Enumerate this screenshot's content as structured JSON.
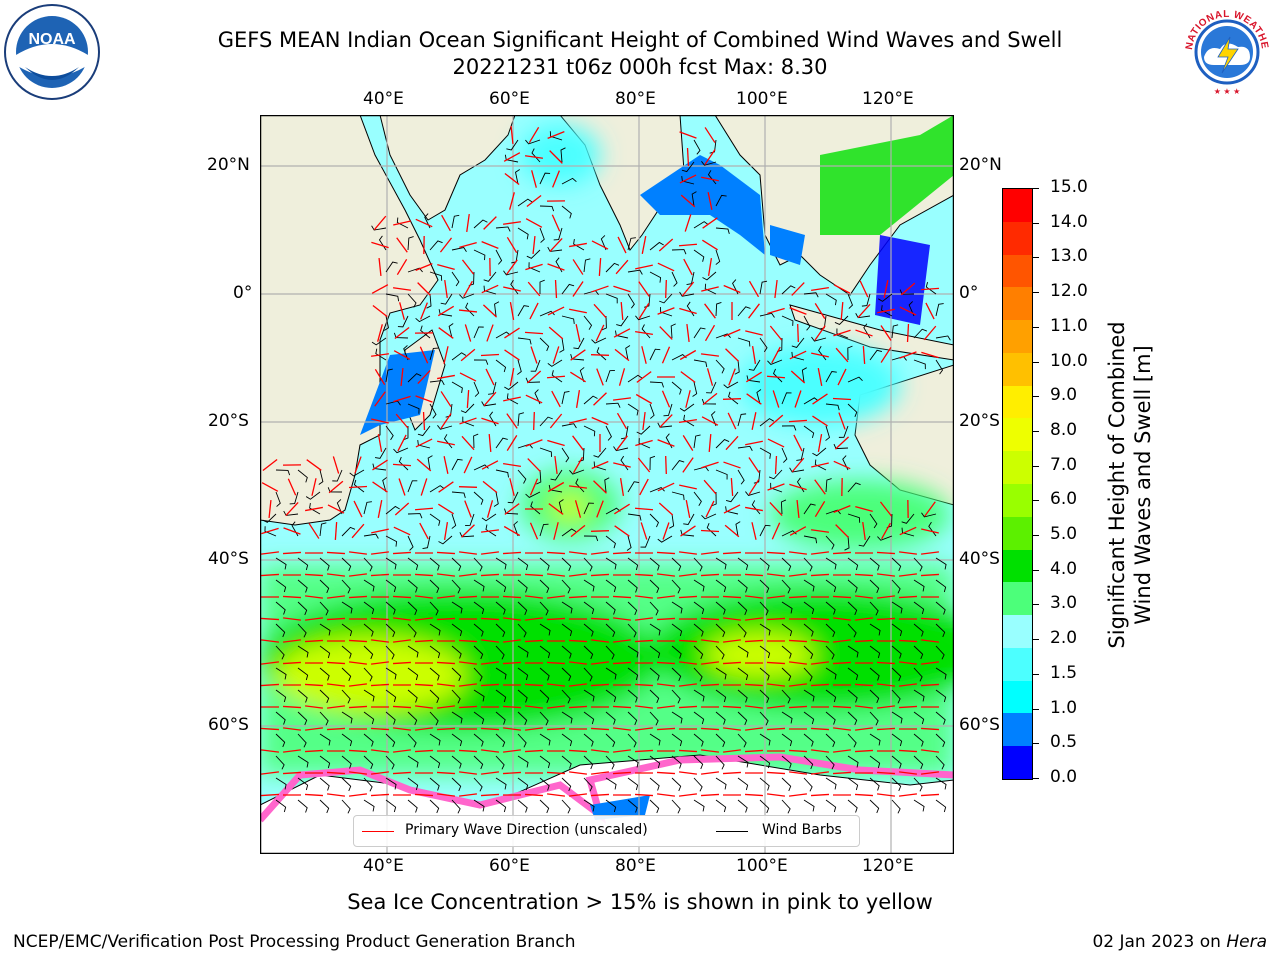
{
  "header": {
    "title_line1": "GEFS MEAN Indian Ocean Significant Height of Combined Wind Waves and Swell",
    "title_line2": "20221231 t06z 000h fcst   Max: 8.30"
  },
  "logos": {
    "left": {
      "name": "noaa-logo",
      "text": "NOAA"
    },
    "right": {
      "name": "nws-logo",
      "text": "NATIONAL WEATHER SERVICE"
    }
  },
  "map": {
    "lon_labels_top": [
      "40°E",
      "60°E",
      "80°E",
      "100°E",
      "120°E"
    ],
    "lon_labels_bottom": [
      "40°E",
      "60°E",
      "80°E",
      "100°E",
      "120°E"
    ],
    "lat_labels_left": [
      "20°N",
      "0°",
      "20°S",
      "40°S",
      "60°S"
    ],
    "lat_labels_right": [
      "20°N",
      "0°",
      "20°S",
      "40°S",
      "60°S"
    ],
    "land_color": "#efefdc",
    "grid_color": "#b0b0b0"
  },
  "legend": {
    "wave_label": "Primary Wave Direction (unscaled)",
    "wind_label": "Wind Barbs",
    "wave_color": "#ff0000",
    "wind_color": "#000000"
  },
  "colorbar": {
    "label_line1": "Significant Height of Combined",
    "label_line2": "Wind Waves and Swell [m]",
    "ticks": [
      "15.0",
      "14.0",
      "13.0",
      "12.0",
      "11.0",
      "10.0",
      "9.0",
      "8.0",
      "7.0",
      "6.0",
      "5.0",
      "4.0",
      "3.0",
      "2.0",
      "1.5",
      "1.0",
      "0.5",
      "0.0"
    ],
    "colors_top_to_bottom": [
      "#ff0000",
      "#ff2a00",
      "#ff5500",
      "#ff7f00",
      "#ffa000",
      "#ffc000",
      "#ffee00",
      "#eeff00",
      "#ccff00",
      "#99ff00",
      "#5cf000",
      "#00e000",
      "#4cff7a",
      "#99ffff",
      "#4cffff",
      "#00ffff",
      "#0080ff",
      "#0000ff"
    ]
  },
  "note": "Sea Ice Concentration > 15% is shown in pink to yellow",
  "footer": {
    "left": "NCEP/EMC/Verification Post Processing Product Generation Branch",
    "right_date": "02 Jan 2023 on ",
    "right_host": "Hera"
  }
}
